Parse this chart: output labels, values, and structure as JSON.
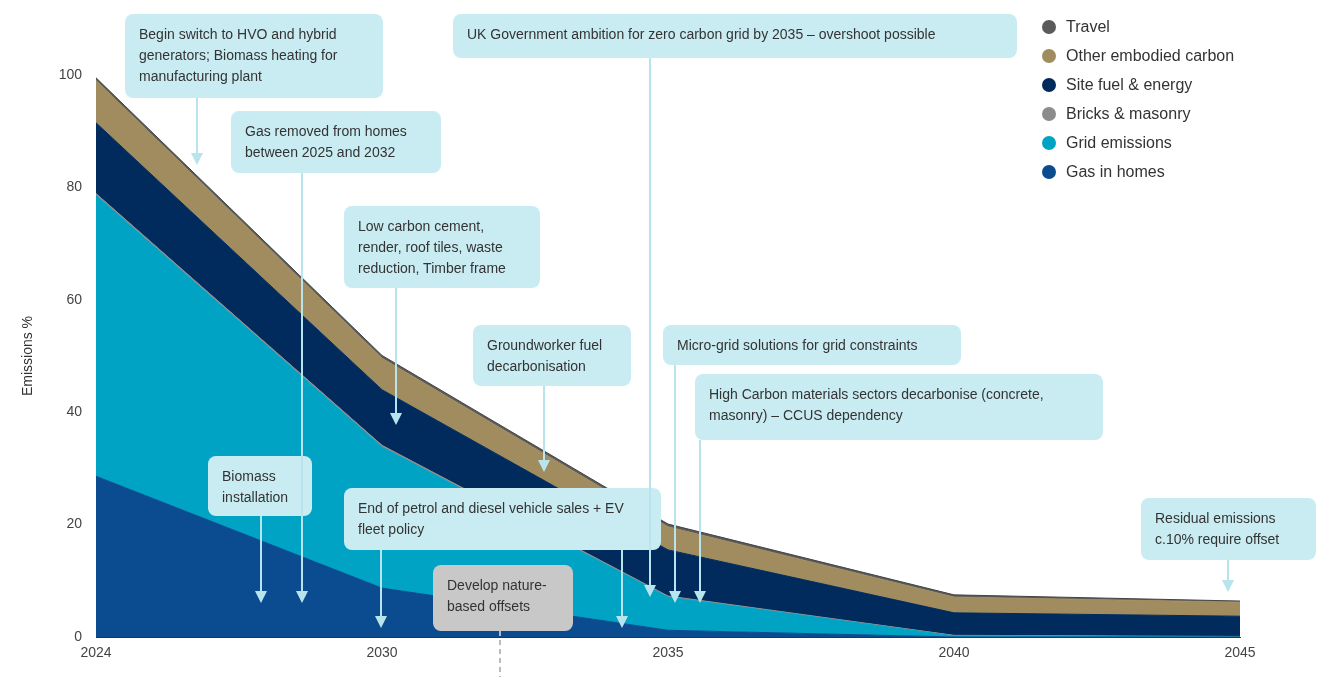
{
  "chart_data": {
    "type": "area",
    "stacked": true,
    "ylabel": "Emissions %",
    "categories": [
      "2024",
      "2030",
      "2035",
      "2040",
      "2045"
    ],
    "ylim": [
      0,
      100
    ],
    "yticks": [
      0,
      20,
      40,
      60,
      80,
      100
    ],
    "grid": false,
    "legend": "top right",
    "series": [
      {
        "name": "Gas in homes",
        "color": "#0a4c8f",
        "values": [
          28.6,
          8.7,
          1.2,
          0,
          0
        ]
      },
      {
        "name": "Grid emissions",
        "color": "#00a3c4",
        "values": [
          50,
          25.1,
          5.9,
          0.2,
          0
        ]
      },
      {
        "name": "Bricks & masonry",
        "color": "#8c8c8c",
        "values": [
          0.3,
          0.3,
          0.2,
          0.1,
          0.1
        ]
      },
      {
        "name": "Site fuel & energy",
        "color": "#002b5c",
        "values": [
          12.6,
          9.9,
          8.2,
          4,
          3.6
        ]
      },
      {
        "name": "Other embodied carbon",
        "color": "#a08c5e",
        "values": [
          7.5,
          5.6,
          4.1,
          2.8,
          2.5
        ]
      },
      {
        "name": "Travel",
        "color": "#5a5a5a",
        "values": [
          0.5,
          0.5,
          0.5,
          0.4,
          0.2
        ]
      }
    ],
    "annotations": [
      "Begin switch to HVO and hybrid generators; Biomass heating for manufacturing plant",
      "Gas removed from homes between 2025 and 2032",
      "Low carbon cement, render, roof tiles, waste reduction, Timber frame",
      "Groundworker fuel decarbonisation",
      "UK Government ambition for zero carbon grid by 2035 – overshoot possible",
      "Micro-grid solutions for grid constraints",
      "High Carbon materials sectors decarbonise (concrete, masonry) – CCUS dependency",
      "Biomass installation",
      "End of petrol and diesel vehicle sales + EV fleet policy",
      "Develop nature-based offsets",
      "Residual emissions c.10% require offset"
    ]
  }
}
